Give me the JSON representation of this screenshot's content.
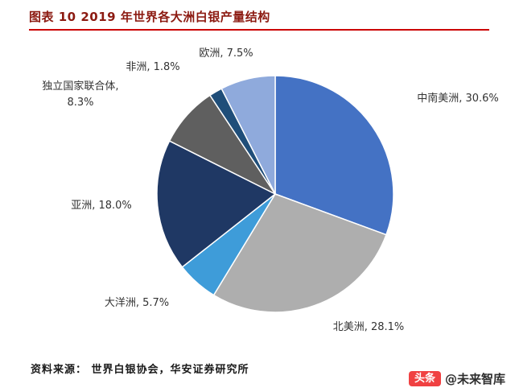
{
  "header": {
    "title": "图表 10 2019 年世界各大洲白银产量结构",
    "title_color": "#8C1A11",
    "accent_color": "#CC0000"
  },
  "chart_data": {
    "type": "pie",
    "title": "2019 年世界各大洲白银产量结构",
    "unit": "%",
    "start_angle_deg": 0,
    "direction": "clockwise",
    "legend_position": "none",
    "slices": [
      {
        "name": "中南美洲",
        "value": 30.6,
        "label": "中南美洲, 30.6%",
        "color": "#4472C4"
      },
      {
        "name": "北美洲",
        "value": 28.1,
        "label": "北美洲, 28.1%",
        "color": "#AEAEAE"
      },
      {
        "name": "大洋洲",
        "value": 5.7,
        "label": "大洋洲, 5.7%",
        "color": "#3E9CD9"
      },
      {
        "name": "亚洲",
        "value": 18.0,
        "label": "亚洲, 18.0%",
        "color": "#1F3864"
      },
      {
        "name": "独立国家联合体",
        "value": 8.3,
        "label": "独立国家联合体, 8.3%",
        "color": "#5F5F5F"
      },
      {
        "name": "非洲",
        "value": 1.8,
        "label": "非洲, 1.8%",
        "color": "#1F4E79"
      },
      {
        "name": "欧洲",
        "value": 7.5,
        "label": "欧洲, 7.5%",
        "color": "#8FAADC"
      }
    ]
  },
  "footer": {
    "source": "资料来源： 世界白银协会，华安证券研究所"
  },
  "watermark": {
    "badge": "头条",
    "handle": "@未来智库",
    "badge_color": "#F04142"
  }
}
